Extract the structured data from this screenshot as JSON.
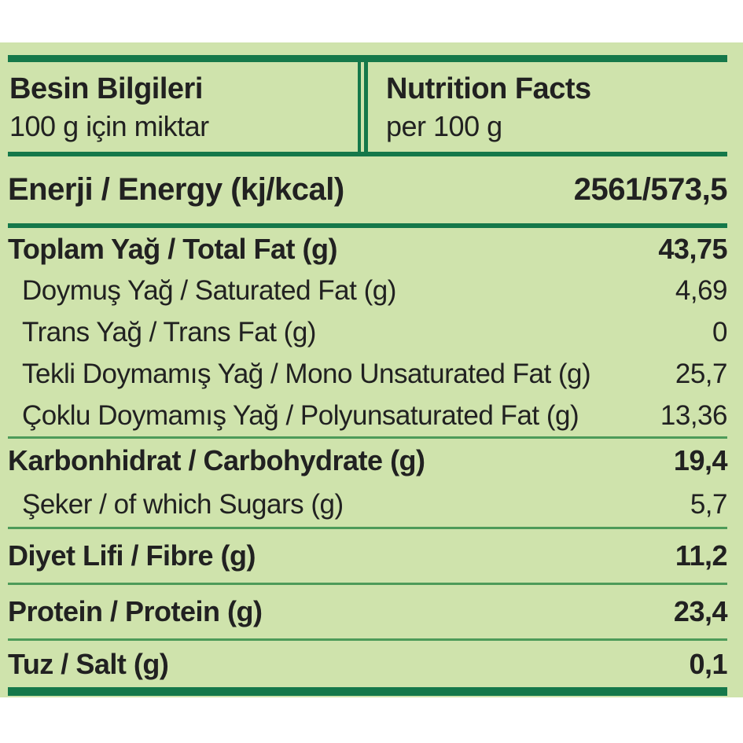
{
  "colors": {
    "label_bg": "#cfe3ac",
    "bar_dark": "#15784a",
    "line_thin": "#4d9b59",
    "text": "#212121"
  },
  "header": {
    "tr_title": "Besin Bilgileri",
    "tr_subtitle": "100 g için miktar",
    "en_title": "Nutrition Facts",
    "en_subtitle": "per 100 g"
  },
  "energy": {
    "label": "Enerji / Energy (kj/kcal)",
    "value": "2561/573,5"
  },
  "fat": {
    "total": {
      "label": "Toplam Yağ / Total Fat (g)",
      "value": "43,75"
    },
    "saturated": {
      "label": "Doymuş Yağ / Saturated Fat (g)",
      "value": "4,69"
    },
    "trans": {
      "label": "Trans Yağ / Trans Fat (g)",
      "value": "0"
    },
    "mono": {
      "label": "Tekli Doymamış Yağ / Mono Unsaturated Fat (g)",
      "value": "25,7"
    },
    "poly": {
      "label": "Çoklu Doymamış Yağ / Polyunsaturated Fat (g)",
      "value": "13,36"
    }
  },
  "carbohydrate": {
    "total": {
      "label": "Karbonhidrat / Carbohydrate (g)",
      "value": "19,4"
    },
    "sugars": {
      "label": "Şeker / of which Sugars (g)",
      "value": "5,7"
    }
  },
  "fibre": {
    "label": "Diyet Lifi / Fibre (g)",
    "value": "11,2"
  },
  "protein": {
    "label": "Protein / Protein (g)",
    "value": "23,4"
  },
  "salt": {
    "label": "Tuz / Salt (g)",
    "value": "0,1"
  }
}
